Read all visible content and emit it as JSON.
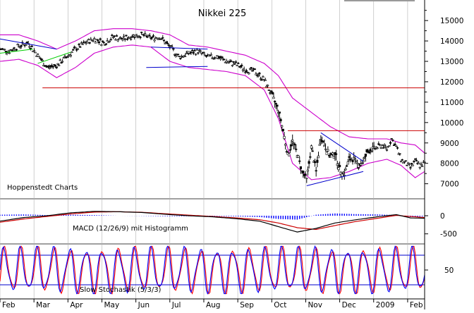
{
  "colors": {
    "background": "#ffffff",
    "price": "#000000",
    "bollinger": "#cc00cc",
    "resistance": "#cc0000",
    "trend_blue": "#0000cc",
    "trend_green": "#00cc00",
    "macd_histogram": "#0000ff",
    "macd_signal": "#cc0000",
    "stoch_k": "#0000ff",
    "stoch_d": "#ff0000",
    "grid": "#b0b0b0"
  },
  "chart_data": [
    {
      "type": "candlestick",
      "title": "Nikkei 225",
      "watermark": "Hoppenstedt Charts",
      "ylim": [
        6400,
        15800
      ],
      "y_ticks": [
        "15000",
        "14000",
        "13000",
        "12000",
        "11000",
        "10000",
        "9000",
        "8000",
        "7000"
      ],
      "x_ticks": [
        "Feb",
        "Mar",
        "Apr",
        "May",
        "Jun",
        "Jul",
        "Aug",
        "Sep",
        "Oct",
        "Nov",
        "Dec",
        "2009",
        "Feb"
      ],
      "close_points": [
        [
          0,
          13600
        ],
        [
          4,
          13500
        ],
        [
          8,
          13750
        ],
        [
          12,
          13900
        ],
        [
          16,
          13300
        ],
        [
          20,
          12700
        ],
        [
          24,
          12800
        ],
        [
          28,
          13200
        ],
        [
          32,
          13600
        ],
        [
          36,
          13900
        ],
        [
          40,
          14100
        ],
        [
          44,
          13900
        ],
        [
          48,
          14200
        ],
        [
          52,
          14100
        ],
        [
          56,
          14250
        ],
        [
          60,
          14300
        ],
        [
          64,
          14150
        ],
        [
          68,
          14200
        ],
        [
          72,
          13700
        ],
        [
          76,
          13200
        ],
        [
          80,
          13400
        ],
        [
          84,
          13500
        ],
        [
          88,
          13200
        ],
        [
          92,
          13250
        ],
        [
          96,
          13000
        ],
        [
          100,
          12850
        ],
        [
          104,
          12600
        ],
        [
          108,
          12500
        ],
        [
          112,
          12100
        ],
        [
          115,
          11400
        ],
        [
          118,
          10600
        ],
        [
          120,
          9600
        ],
        [
          122,
          8400
        ],
        [
          124,
          9100
        ],
        [
          126,
          8500
        ],
        [
          128,
          7600
        ],
        [
          130,
          7200
        ],
        [
          132,
          8800
        ],
        [
          134,
          7600
        ],
        [
          136,
          9300
        ],
        [
          138,
          8800
        ],
        [
          140,
          8300
        ],
        [
          142,
          8500
        ],
        [
          144,
          7700
        ],
        [
          146,
          7500
        ],
        [
          148,
          8200
        ],
        [
          150,
          8200
        ],
        [
          152,
          7900
        ],
        [
          154,
          8100
        ],
        [
          156,
          8600
        ],
        [
          158,
          8700
        ],
        [
          160,
          8800
        ],
        [
          162,
          8900
        ],
        [
          164,
          8700
        ],
        [
          166,
          9200
        ],
        [
          168,
          8800
        ],
        [
          170,
          8200
        ],
        [
          172,
          8000
        ],
        [
          174,
          7800
        ],
        [
          176,
          8100
        ],
        [
          178,
          7900
        ],
        [
          180,
          8000
        ]
      ],
      "bollinger_upper": [
        [
          0,
          14300
        ],
        [
          8,
          14300
        ],
        [
          16,
          14000
        ],
        [
          24,
          13600
        ],
        [
          32,
          14000
        ],
        [
          40,
          14500
        ],
        [
          48,
          14600
        ],
        [
          56,
          14600
        ],
        [
          64,
          14500
        ],
        [
          72,
          14300
        ],
        [
          80,
          13800
        ],
        [
          88,
          13700
        ],
        [
          96,
          13500
        ],
        [
          104,
          13300
        ],
        [
          112,
          12900
        ],
        [
          118,
          12300
        ],
        [
          124,
          11200
        ],
        [
          132,
          10500
        ],
        [
          140,
          9800
        ],
        [
          148,
          9300
        ],
        [
          156,
          9200
        ],
        [
          164,
          9200
        ],
        [
          170,
          9000
        ],
        [
          176,
          8900
        ],
        [
          180,
          8500
        ]
      ],
      "bollinger_lower": [
        [
          0,
          13000
        ],
        [
          8,
          13100
        ],
        [
          16,
          12800
        ],
        [
          24,
          12200
        ],
        [
          32,
          12700
        ],
        [
          40,
          13400
        ],
        [
          48,
          13700
        ],
        [
          56,
          13800
        ],
        [
          64,
          13700
        ],
        [
          72,
          13000
        ],
        [
          80,
          12700
        ],
        [
          88,
          12600
        ],
        [
          96,
          12500
        ],
        [
          104,
          12300
        ],
        [
          112,
          11600
        ],
        [
          118,
          10200
        ],
        [
          124,
          8000
        ],
        [
          132,
          7200
        ],
        [
          140,
          7300
        ],
        [
          148,
          7600
        ],
        [
          156,
          8000
        ],
        [
          164,
          8200
        ],
        [
          170,
          7900
        ],
        [
          176,
          7300
        ],
        [
          180,
          7600
        ]
      ],
      "resistance_lines": [
        11700,
        9600
      ],
      "trend_lines": [
        {
          "from": [
            0,
            14100
          ],
          "to": [
            24,
            13600
          ],
          "color": "blue"
        },
        {
          "from": [
            0,
            13400
          ],
          "to": [
            14,
            13600
          ],
          "color": "green"
        },
        {
          "from": [
            16,
            12900
          ],
          "to": [
            30,
            13450
          ],
          "color": "green"
        },
        {
          "from": [
            64,
            13700
          ],
          "to": [
            88,
            13600
          ],
          "color": "blue"
        },
        {
          "from": [
            62,
            12700
          ],
          "to": [
            88,
            12750
          ],
          "color": "blue"
        },
        {
          "from": [
            130,
            6900
          ],
          "to": [
            154,
            7600
          ],
          "color": "blue"
        },
        {
          "from": [
            136,
            9500
          ],
          "to": [
            154,
            8100
          ],
          "color": "blue"
        }
      ]
    },
    {
      "type": "histogram",
      "title": "MACD (12/26/9) mit Histogramm",
      "ylim": [
        -700,
        350
      ],
      "y_ticks": [
        "0",
        "-500"
      ],
      "macd": [
        [
          0,
          -150
        ],
        [
          10,
          -50
        ],
        [
          20,
          0
        ],
        [
          30,
          80
        ],
        [
          40,
          120
        ],
        [
          50,
          110
        ],
        [
          60,
          90
        ],
        [
          70,
          40
        ],
        [
          80,
          0
        ],
        [
          90,
          -30
        ],
        [
          100,
          -80
        ],
        [
          110,
          -150
        ],
        [
          118,
          -300
        ],
        [
          126,
          -450
        ],
        [
          134,
          -350
        ],
        [
          142,
          -200
        ],
        [
          150,
          -120
        ],
        [
          160,
          -30
        ],
        [
          168,
          30
        ],
        [
          174,
          -60
        ],
        [
          180,
          -70
        ]
      ],
      "signal": [
        [
          0,
          -180
        ],
        [
          10,
          -90
        ],
        [
          20,
          -20
        ],
        [
          30,
          50
        ],
        [
          40,
          100
        ],
        [
          50,
          110
        ],
        [
          60,
          95
        ],
        [
          70,
          55
        ],
        [
          80,
          15
        ],
        [
          90,
          -20
        ],
        [
          100,
          -60
        ],
        [
          110,
          -110
        ],
        [
          118,
          -200
        ],
        [
          126,
          -330
        ],
        [
          134,
          -380
        ],
        [
          142,
          -270
        ],
        [
          150,
          -170
        ],
        [
          160,
          -70
        ],
        [
          168,
          10
        ],
        [
          174,
          -20
        ],
        [
          180,
          -50
        ]
      ]
    },
    {
      "type": "line",
      "title": "Slow Stochastik (5/3/3)",
      "ylim": [
        0,
        100
      ],
      "y_ticks": [
        "50"
      ],
      "bands": [
        80,
        20
      ],
      "cycles": 26
    }
  ]
}
